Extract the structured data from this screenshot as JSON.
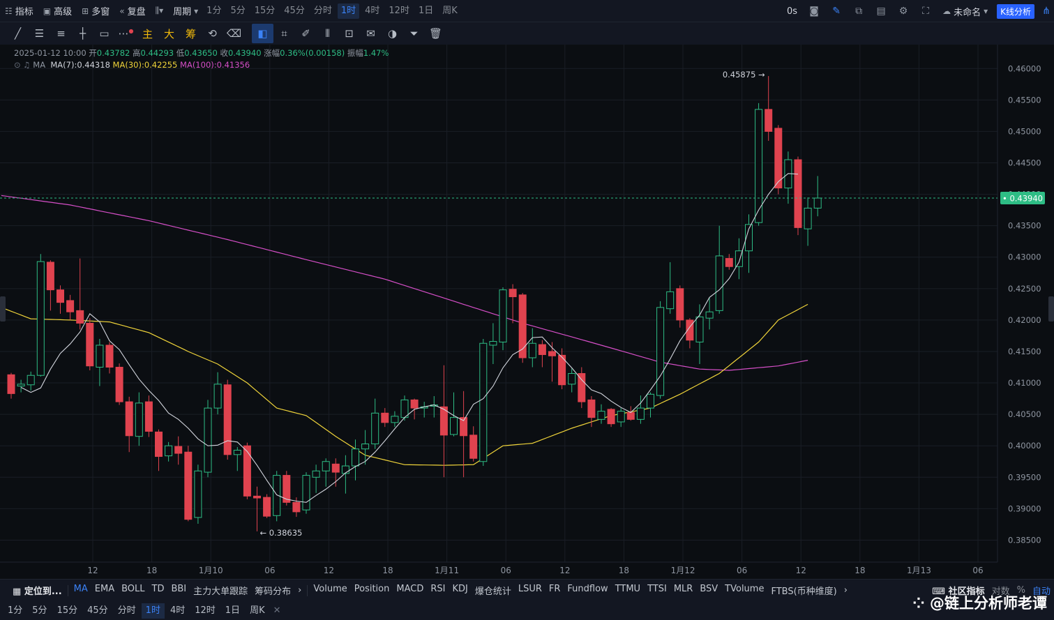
{
  "topbar": {
    "indicators_label": "指标",
    "advanced_label": "高级",
    "multiwindow_label": "多窗",
    "replay_label": "复盘",
    "period_label": "周期",
    "timeframes": [
      "1分",
      "5分",
      "15分",
      "45分",
      "分时",
      "1时",
      "4时",
      "12时",
      "1日",
      "周K"
    ],
    "active_timeframe": "1时",
    "latency": "0s",
    "layout_name": "未命名",
    "kline_button": "K线分析"
  },
  "drawbar": {
    "gold_tools": [
      "主",
      "大",
      "筹"
    ]
  },
  "ohlc": {
    "datetime": "2025-01-12 10:00",
    "open_label": "开",
    "open": "0.43782",
    "high_label": "高",
    "high": "0.44293",
    "low_label": "低",
    "low": "0.43650",
    "close_label": "收",
    "close": "0.43940",
    "change_label": "涨幅",
    "change": "0.36%(0.00158)",
    "amplitude_label": "振幅",
    "amplitude": "1.47%"
  },
  "ma_legend": {
    "name": "MA",
    "ma7": "MA(7):0.44318",
    "ma30": "MA(30):0.42255",
    "ma100": "MA(100):0.41356"
  },
  "colors": {
    "up": "#2ebd85",
    "down": "#e0434f",
    "ma7": "#d1d4dc",
    "ma30": "#f0d43a",
    "ma100": "#d64fc8",
    "last_price": "#2ebd85",
    "accent": "#3b82f6"
  },
  "chart_data": {
    "type": "candlestick",
    "symbol_timeframe": "1时",
    "last_price": 0.4394,
    "last_price_label": "0.43940",
    "max_label": "0.45875",
    "min_label": "0.38635",
    "y_ticks": [
      "0.46000",
      "0.45500",
      "0.45000",
      "0.44500",
      "0.44000",
      "0.43500",
      "0.43000",
      "0.42500",
      "0.42000",
      "0.41500",
      "0.41000",
      "0.40500",
      "0.40000",
      "0.39500",
      "0.39000",
      "0.38500"
    ],
    "ylim": [
      0.3815,
      0.4638
    ],
    "x_ticks": [
      {
        "label": "12",
        "idx": 8.3
      },
      {
        "label": "18",
        "idx": 14.3
      },
      {
        "label": "1月10",
        "idx": 20.3
      },
      {
        "label": "06",
        "idx": 26.3
      },
      {
        "label": "12",
        "idx": 32.3
      },
      {
        "label": "18",
        "idx": 38.3
      },
      {
        "label": "1月11",
        "idx": 44.3
      },
      {
        "label": "06",
        "idx": 50.3
      },
      {
        "label": "12",
        "idx": 56.3
      },
      {
        "label": "18",
        "idx": 62.3
      },
      {
        "label": "1月12",
        "idx": 68.3
      },
      {
        "label": "06",
        "idx": 74.3
      },
      {
        "label": "12",
        "idx": 80.3
      },
      {
        "label": "18",
        "idx": 86.3
      },
      {
        "label": "1月13",
        "idx": 92.3
      },
      {
        "label": "06",
        "idx": 98.3
      }
    ],
    "candles": [
      [
        0.4113,
        0.4083,
        0.4116,
        0.4075
      ],
      [
        0.4095,
        0.4098,
        0.4105,
        0.4085
      ],
      [
        0.4097,
        0.4112,
        0.4118,
        0.4088
      ],
      [
        0.4112,
        0.4293,
        0.4305,
        0.411
      ],
      [
        0.4292,
        0.4248,
        0.4295,
        0.4215
      ],
      [
        0.4248,
        0.4228,
        0.4255,
        0.421
      ],
      [
        0.4231,
        0.4213,
        0.424,
        0.42
      ],
      [
        0.4215,
        0.4195,
        0.4298,
        0.4185
      ],
      [
        0.4195,
        0.4127,
        0.4203,
        0.412
      ],
      [
        0.4125,
        0.416,
        0.417,
        0.4095
      ],
      [
        0.416,
        0.4125,
        0.4165,
        0.4115
      ],
      [
        0.4125,
        0.407,
        0.4131,
        0.4065
      ],
      [
        0.407,
        0.4016,
        0.4078,
        0.399
      ],
      [
        0.4015,
        0.4068,
        0.4085,
        0.4
      ],
      [
        0.407,
        0.4023,
        0.408,
        0.4014
      ],
      [
        0.4022,
        0.3983,
        0.4026,
        0.396
      ],
      [
        0.3984,
        0.4,
        0.4006,
        0.3975
      ],
      [
        0.3999,
        0.3988,
        0.4015,
        0.397
      ],
      [
        0.399,
        0.3883,
        0.4,
        0.388
      ],
      [
        0.3886,
        0.396,
        0.397,
        0.3876
      ],
      [
        0.3958,
        0.406,
        0.4073,
        0.395
      ],
      [
        0.406,
        0.4098,
        0.4117,
        0.405
      ],
      [
        0.4097,
        0.3986,
        0.4105,
        0.3978
      ],
      [
        0.3986,
        0.3993,
        0.3998,
        0.396
      ],
      [
        0.4,
        0.392,
        0.4005,
        0.3915
      ],
      [
        0.392,
        0.3917,
        0.3935,
        0.3864
      ],
      [
        0.3918,
        0.3888,
        0.3923,
        0.3885
      ],
      [
        0.3889,
        0.3953,
        0.396,
        0.388
      ],
      [
        0.3953,
        0.391,
        0.396,
        0.3905
      ],
      [
        0.391,
        0.3895,
        0.3918,
        0.3887
      ],
      [
        0.3898,
        0.3953,
        0.3958,
        0.3892
      ],
      [
        0.395,
        0.396,
        0.397,
        0.3925
      ],
      [
        0.396,
        0.3975,
        0.398,
        0.3935
      ],
      [
        0.3971,
        0.3958,
        0.398,
        0.3935
      ],
      [
        0.3956,
        0.3968,
        0.3985,
        0.3924
      ],
      [
        0.3968,
        0.3995,
        0.401,
        0.3945
      ],
      [
        0.3995,
        0.4003,
        0.4025,
        0.397
      ],
      [
        0.4003,
        0.4052,
        0.4075,
        0.3995
      ],
      [
        0.4052,
        0.4037,
        0.406,
        0.403
      ],
      [
        0.4037,
        0.4047,
        0.4055,
        0.403
      ],
      [
        0.4045,
        0.4073,
        0.408,
        0.404
      ],
      [
        0.4073,
        0.406,
        0.4075,
        0.4042
      ],
      [
        0.406,
        0.4062,
        0.407,
        0.4045
      ],
      [
        0.4063,
        0.4065,
        0.4079,
        0.4045
      ],
      [
        0.4062,
        0.4017,
        0.4128,
        0.395
      ],
      [
        0.4018,
        0.4045,
        0.4085,
        0.4015
      ],
      [
        0.4045,
        0.4016,
        0.4087,
        0.395
      ],
      [
        0.4017,
        0.398,
        0.4031,
        0.3975
      ],
      [
        0.3975,
        0.4163,
        0.417,
        0.3968
      ],
      [
        0.416,
        0.4166,
        0.4195,
        0.413
      ],
      [
        0.4165,
        0.4248,
        0.4252,
        0.4152
      ],
      [
        0.4249,
        0.4237,
        0.4257,
        0.4195
      ],
      [
        0.424,
        0.414,
        0.4243,
        0.4132
      ],
      [
        0.414,
        0.4163,
        0.4187,
        0.4125
      ],
      [
        0.4161,
        0.4145,
        0.4168,
        0.4125
      ],
      [
        0.415,
        0.4143,
        0.4165,
        0.4102
      ],
      [
        0.4144,
        0.4097,
        0.4155,
        0.409
      ],
      [
        0.4098,
        0.4115,
        0.4123,
        0.4085
      ],
      [
        0.4115,
        0.407,
        0.4125,
        0.406
      ],
      [
        0.4073,
        0.4045,
        0.4079,
        0.403
      ],
      [
        0.4042,
        0.4055,
        0.4066,
        0.4035
      ],
      [
        0.4058,
        0.4035,
        0.406,
        0.403
      ],
      [
        0.4038,
        0.4055,
        0.406,
        0.403
      ],
      [
        0.4053,
        0.4042,
        0.4063,
        0.404
      ],
      [
        0.4042,
        0.406,
        0.408,
        0.4035
      ],
      [
        0.406,
        0.4082,
        0.4085,
        0.4045
      ],
      [
        0.408,
        0.422,
        0.423,
        0.4075
      ],
      [
        0.4218,
        0.4245,
        0.4292,
        0.421
      ],
      [
        0.425,
        0.42,
        0.4255,
        0.4188
      ],
      [
        0.42,
        0.4168,
        0.4203,
        0.4155
      ],
      [
        0.4165,
        0.4205,
        0.4225,
        0.413
      ],
      [
        0.4203,
        0.4213,
        0.4235,
        0.4185
      ],
      [
        0.4215,
        0.4302,
        0.435,
        0.421
      ],
      [
        0.4298,
        0.4285,
        0.4305,
        0.428
      ],
      [
        0.4285,
        0.431,
        0.433,
        0.4265
      ],
      [
        0.431,
        0.4352,
        0.4368,
        0.4275
      ],
      [
        0.4355,
        0.4535,
        0.4545,
        0.435
      ],
      [
        0.4535,
        0.45,
        0.4588,
        0.4485
      ],
      [
        0.4505,
        0.441,
        0.451,
        0.44
      ],
      [
        0.441,
        0.4455,
        0.4468,
        0.4385
      ],
      [
        0.4455,
        0.4347,
        0.446,
        0.4335
      ],
      [
        0.4345,
        0.4378,
        0.4395,
        0.4318
      ],
      [
        0.4378,
        0.4394,
        0.4429,
        0.4365
      ]
    ],
    "ma7": [
      0.4093,
      0.4085,
      0.4092,
      0.4122,
      0.4147,
      0.4162,
      0.4181,
      0.421,
      0.4197,
      0.4167,
      0.4153,
      0.4129,
      0.4106,
      0.4088,
      0.4072,
      0.4052,
      0.4042,
      0.4028,
      0.4011,
      0.4,
      0.4001,
      0.4008,
      0.4006,
      0.3991,
      0.3969,
      0.3945,
      0.3922,
      0.3915,
      0.3912,
      0.391,
      0.3921,
      0.3931,
      0.3943,
      0.3957,
      0.3967,
      0.3975,
      0.399,
      0.4008,
      0.4027,
      0.4045,
      0.4058,
      0.4062,
      0.4065,
      0.4058,
      0.4048,
      0.404,
      0.4066,
      0.4075,
      0.4095,
      0.4124,
      0.4145,
      0.4154,
      0.4172,
      0.4173,
      0.4156,
      0.4141,
      0.4124,
      0.4105,
      0.4089,
      0.4083,
      0.4071,
      0.4061,
      0.4053,
      0.4068,
      0.4089,
      0.4111,
      0.4138,
      0.4167,
      0.4189,
      0.4208,
      0.4236,
      0.4248,
      0.4266,
      0.4292,
      0.4345,
      0.4375,
      0.44,
      0.442,
      0.4433,
      0.4432
    ]
  },
  "bottom": {
    "locate_label": "定位到...",
    "indicators": [
      "MA",
      "EMA",
      "BOLL",
      "TD",
      "BBI",
      "主力大单跟踪",
      "筹码分布"
    ],
    "active_indicator": "MA",
    "sub_indicators": [
      "Volume",
      "Position",
      "MACD",
      "RSI",
      "KDJ",
      "爆仓统计",
      "LSUR",
      "FR",
      "Fundflow",
      "TTMU",
      "TTSI",
      "MLR",
      "BSV",
      "TVolume",
      "FTBS(币种维度)"
    ],
    "community_label": "社区指标",
    "log_label": "对数",
    "percent_label": "%",
    "auto_label": "自动",
    "timeframes": [
      "1分",
      "5分",
      "15分",
      "45分",
      "分时",
      "1时",
      "4时",
      "12时",
      "1日",
      "周K"
    ],
    "active_timeframe": "1时"
  },
  "watermark": "@链上分析师老谭"
}
